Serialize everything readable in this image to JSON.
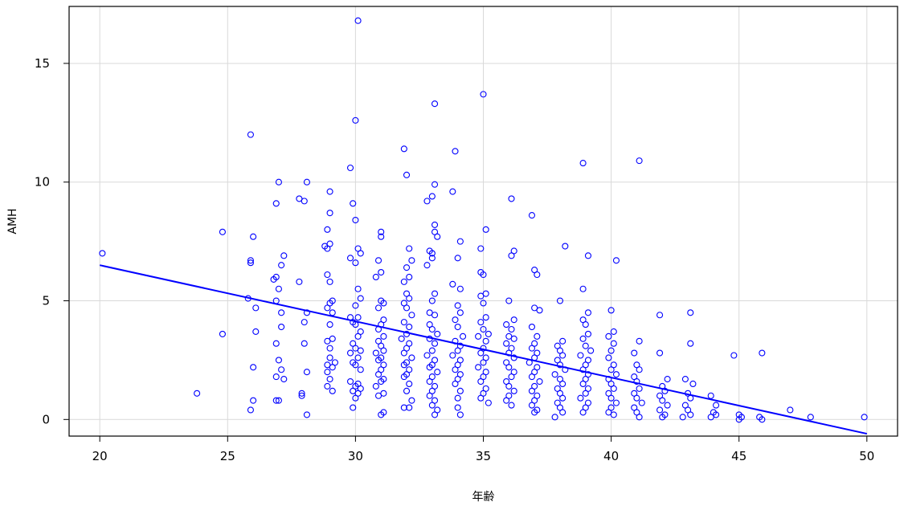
{
  "chart_data": {
    "type": "scatter",
    "xlabel": "年齢",
    "ylabel": "AMH",
    "xlim": [
      18.8,
      51.2
    ],
    "ylim": [
      -0.7,
      17.4
    ],
    "xticks": [
      20,
      25,
      30,
      35,
      40,
      45,
      50
    ],
    "yticks": [
      0,
      5,
      10,
      15
    ],
    "grid": true,
    "colors": {
      "points": "#0000ff",
      "fit_line": "#0000ff",
      "grid": "#d9d9d9",
      "axes": "#000000"
    },
    "fit_line": {
      "x": [
        20,
        50
      ],
      "y": [
        6.5,
        -0.6
      ]
    },
    "points": [
      [
        20.1,
        7.0
      ],
      [
        23.8,
        1.1
      ],
      [
        24.8,
        7.9
      ],
      [
        24.8,
        3.6
      ],
      [
        25.9,
        12.0
      ],
      [
        25.9,
        6.7
      ],
      [
        25.9,
        6.6
      ],
      [
        25.8,
        5.1
      ],
      [
        26.0,
        7.7
      ],
      [
        26.1,
        4.7
      ],
      [
        26.1,
        3.7
      ],
      [
        26.0,
        2.2
      ],
      [
        26.0,
        0.8
      ],
      [
        25.9,
        0.4
      ],
      [
        27.0,
        10.0
      ],
      [
        26.9,
        9.1
      ],
      [
        27.2,
        6.9
      ],
      [
        27.1,
        6.5
      ],
      [
        26.9,
        6.0
      ],
      [
        27.0,
        5.5
      ],
      [
        26.8,
        5.9
      ],
      [
        26.9,
        5.0
      ],
      [
        27.1,
        4.5
      ],
      [
        27.1,
        3.9
      ],
      [
        26.9,
        3.2
      ],
      [
        27.0,
        2.5
      ],
      [
        27.1,
        2.1
      ],
      [
        26.9,
        1.8
      ],
      [
        27.2,
        1.7
      ],
      [
        26.9,
        0.8
      ],
      [
        27.0,
        0.8
      ],
      [
        27.8,
        9.3
      ],
      [
        28.0,
        9.2
      ],
      [
        28.1,
        10.0
      ],
      [
        27.8,
        5.8
      ],
      [
        28.1,
        4.5
      ],
      [
        28.0,
        4.1
      ],
      [
        28.0,
        3.2
      ],
      [
        28.1,
        2.0
      ],
      [
        27.9,
        1.1
      ],
      [
        27.9,
        1.0
      ],
      [
        28.1,
        0.2
      ],
      [
        29.0,
        9.6
      ],
      [
        29.0,
        8.7
      ],
      [
        28.9,
        8.0
      ],
      [
        28.8,
        7.3
      ],
      [
        29.0,
        7.4
      ],
      [
        28.9,
        7.2
      ],
      [
        28.9,
        6.1
      ],
      [
        29.0,
        5.8
      ],
      [
        29.1,
        5.0
      ],
      [
        29.0,
        4.9
      ],
      [
        28.9,
        4.7
      ],
      [
        29.1,
        4.5
      ],
      [
        29.0,
        4.0
      ],
      [
        29.1,
        3.4
      ],
      [
        28.9,
        3.3
      ],
      [
        29.0,
        3.0
      ],
      [
        29.0,
        2.6
      ],
      [
        29.2,
        2.4
      ],
      [
        28.9,
        2.3
      ],
      [
        29.1,
        2.2
      ],
      [
        28.9,
        2.0
      ],
      [
        29.0,
        1.7
      ],
      [
        28.9,
        1.4
      ],
      [
        29.1,
        1.2
      ],
      [
        30.1,
        16.8
      ],
      [
        30.0,
        12.6
      ],
      [
        29.8,
        10.6
      ],
      [
        29.9,
        9.1
      ],
      [
        30.0,
        8.4
      ],
      [
        30.1,
        7.2
      ],
      [
        30.2,
        7.0
      ],
      [
        29.8,
        6.8
      ],
      [
        30.0,
        6.6
      ],
      [
        30.1,
        5.5
      ],
      [
        30.2,
        5.1
      ],
      [
        30.0,
        4.8
      ],
      [
        29.8,
        4.3
      ],
      [
        30.1,
        4.3
      ],
      [
        29.9,
        4.1
      ],
      [
        30.0,
        4.0
      ],
      [
        30.2,
        3.7
      ],
      [
        30.1,
        3.5
      ],
      [
        29.9,
        3.2
      ],
      [
        30.0,
        3.0
      ],
      [
        30.2,
        2.9
      ],
      [
        29.8,
        2.8
      ],
      [
        30.1,
        2.6
      ],
      [
        29.9,
        2.4
      ],
      [
        30.0,
        2.3
      ],
      [
        30.2,
        2.1
      ],
      [
        29.8,
        1.6
      ],
      [
        30.1,
        1.5
      ],
      [
        30.0,
        1.4
      ],
      [
        30.2,
        1.3
      ],
      [
        29.9,
        1.2
      ],
      [
        30.1,
        1.1
      ],
      [
        30.0,
        0.9
      ],
      [
        29.9,
        0.5
      ],
      [
        31.0,
        7.9
      ],
      [
        31.0,
        7.7
      ],
      [
        30.9,
        6.7
      ],
      [
        30.8,
        6.0
      ],
      [
        31.0,
        6.2
      ],
      [
        31.0,
        5.0
      ],
      [
        31.1,
        4.9
      ],
      [
        30.9,
        4.7
      ],
      [
        31.1,
        4.2
      ],
      [
        31.0,
        4.0
      ],
      [
        30.9,
        3.8
      ],
      [
        31.1,
        3.5
      ],
      [
        30.9,
        3.3
      ],
      [
        31.0,
        3.1
      ],
      [
        31.1,
        2.9
      ],
      [
        30.8,
        2.8
      ],
      [
        31.0,
        2.6
      ],
      [
        30.9,
        2.5
      ],
      [
        31.1,
        2.3
      ],
      [
        31.0,
        2.1
      ],
      [
        30.9,
        1.9
      ],
      [
        31.1,
        1.7
      ],
      [
        31.0,
        1.6
      ],
      [
        30.8,
        1.4
      ],
      [
        31.1,
        1.1
      ],
      [
        30.9,
        1.0
      ],
      [
        31.0,
        0.2
      ],
      [
        31.1,
        0.3
      ],
      [
        31.9,
        11.4
      ],
      [
        32.0,
        10.3
      ],
      [
        32.1,
        7.2
      ],
      [
        32.2,
        6.7
      ],
      [
        32.0,
        6.4
      ],
      [
        32.1,
        6.0
      ],
      [
        31.9,
        5.8
      ],
      [
        32.0,
        5.3
      ],
      [
        32.1,
        5.1
      ],
      [
        31.9,
        4.9
      ],
      [
        32.0,
        4.7
      ],
      [
        32.2,
        4.4
      ],
      [
        31.9,
        4.1
      ],
      [
        32.1,
        3.9
      ],
      [
        32.0,
        3.6
      ],
      [
        31.8,
        3.4
      ],
      [
        32.1,
        3.2
      ],
      [
        32.0,
        3.0
      ],
      [
        31.9,
        2.8
      ],
      [
        32.2,
        2.6
      ],
      [
        32.0,
        2.4
      ],
      [
        31.9,
        2.3
      ],
      [
        32.1,
        2.1
      ],
      [
        32.0,
        1.9
      ],
      [
        31.9,
        1.8
      ],
      [
        32.1,
        1.5
      ],
      [
        32.0,
        1.2
      ],
      [
        32.2,
        0.8
      ],
      [
        31.9,
        0.5
      ],
      [
        32.1,
        0.5
      ],
      [
        33.1,
        13.3
      ],
      [
        33.1,
        9.9
      ],
      [
        33.0,
        9.4
      ],
      [
        32.8,
        9.2
      ],
      [
        33.1,
        8.2
      ],
      [
        33.1,
        7.9
      ],
      [
        33.2,
        7.7
      ],
      [
        32.9,
        7.1
      ],
      [
        33.0,
        7.0
      ],
      [
        33.0,
        6.8
      ],
      [
        32.8,
        6.5
      ],
      [
        33.1,
        5.3
      ],
      [
        33.0,
        5.0
      ],
      [
        32.9,
        4.5
      ],
      [
        33.1,
        4.4
      ],
      [
        32.9,
        4.0
      ],
      [
        33.0,
        3.8
      ],
      [
        33.2,
        3.6
      ],
      [
        32.9,
        3.4
      ],
      [
        33.1,
        3.2
      ],
      [
        33.0,
        2.9
      ],
      [
        32.8,
        2.7
      ],
      [
        33.1,
        2.5
      ],
      [
        33.0,
        2.3
      ],
      [
        32.9,
        2.2
      ],
      [
        33.2,
        2.0
      ],
      [
        33.0,
        1.8
      ],
      [
        32.9,
        1.6
      ],
      [
        33.1,
        1.4
      ],
      [
        33.0,
        1.2
      ],
      [
        32.9,
        1.0
      ],
      [
        33.1,
        0.8
      ],
      [
        33.0,
        0.6
      ],
      [
        33.2,
        0.4
      ],
      [
        33.1,
        0.2
      ],
      [
        33.9,
        11.3
      ],
      [
        33.8,
        9.6
      ],
      [
        34.1,
        7.5
      ],
      [
        34.0,
        6.8
      ],
      [
        33.8,
        5.7
      ],
      [
        34.1,
        5.5
      ],
      [
        34.0,
        4.8
      ],
      [
        34.1,
        4.5
      ],
      [
        33.9,
        4.2
      ],
      [
        34.0,
        3.9
      ],
      [
        34.2,
        3.5
      ],
      [
        33.9,
        3.3
      ],
      [
        34.1,
        3.1
      ],
      [
        34.0,
        2.9
      ],
      [
        33.8,
        2.7
      ],
      [
        34.1,
        2.5
      ],
      [
        34.0,
        2.3
      ],
      [
        33.9,
        2.1
      ],
      [
        34.1,
        1.9
      ],
      [
        34.0,
        1.7
      ],
      [
        33.9,
        1.5
      ],
      [
        34.1,
        1.2
      ],
      [
        34.0,
        0.9
      ],
      [
        34.0,
        0.5
      ],
      [
        34.1,
        0.2
      ],
      [
        35.0,
        13.7
      ],
      [
        35.1,
        8.0
      ],
      [
        34.9,
        7.2
      ],
      [
        34.9,
        6.2
      ],
      [
        35.0,
        6.1
      ],
      [
        35.1,
        5.3
      ],
      [
        34.9,
        5.2
      ],
      [
        35.0,
        4.9
      ],
      [
        35.1,
        4.3
      ],
      [
        34.9,
        4.1
      ],
      [
        35.0,
        3.8
      ],
      [
        35.2,
        3.6
      ],
      [
        34.8,
        3.5
      ],
      [
        35.1,
        3.3
      ],
      [
        35.0,
        3.0
      ],
      [
        34.9,
        2.8
      ],
      [
        35.1,
        2.6
      ],
      [
        35.0,
        2.4
      ],
      [
        34.8,
        2.2
      ],
      [
        35.1,
        2.0
      ],
      [
        35.0,
        1.8
      ],
      [
        34.9,
        1.6
      ],
      [
        35.1,
        1.3
      ],
      [
        35.0,
        1.1
      ],
      [
        34.9,
        0.9
      ],
      [
        35.2,
        0.7
      ],
      [
        36.1,
        9.3
      ],
      [
        36.2,
        7.1
      ],
      [
        36.1,
        6.9
      ],
      [
        36.0,
        5.0
      ],
      [
        36.2,
        4.2
      ],
      [
        35.9,
        4.0
      ],
      [
        36.1,
        3.8
      ],
      [
        36.0,
        3.5
      ],
      [
        36.2,
        3.4
      ],
      [
        35.9,
        3.2
      ],
      [
        36.1,
        3.0
      ],
      [
        36.0,
        2.8
      ],
      [
        36.2,
        2.6
      ],
      [
        35.9,
        2.4
      ],
      [
        36.0,
        2.2
      ],
      [
        36.2,
        2.0
      ],
      [
        36.1,
        1.8
      ],
      [
        35.9,
        1.6
      ],
      [
        36.0,
        1.4
      ],
      [
        36.2,
        1.2
      ],
      [
        36.0,
        1.0
      ],
      [
        35.9,
        0.8
      ],
      [
        36.1,
        0.6
      ],
      [
        36.9,
        8.6
      ],
      [
        37.0,
        6.3
      ],
      [
        37.1,
        6.1
      ],
      [
        37.0,
        4.7
      ],
      [
        37.2,
        4.6
      ],
      [
        36.9,
        3.9
      ],
      [
        37.1,
        3.5
      ],
      [
        37.0,
        3.2
      ],
      [
        36.9,
        3.0
      ],
      [
        37.1,
        2.8
      ],
      [
        37.0,
        2.6
      ],
      [
        36.8,
        2.4
      ],
      [
        37.1,
        2.2
      ],
      [
        37.0,
        2.0
      ],
      [
        36.9,
        1.8
      ],
      [
        37.2,
        1.6
      ],
      [
        37.0,
        1.4
      ],
      [
        36.9,
        1.2
      ],
      [
        37.1,
        1.0
      ],
      [
        37.0,
        0.8
      ],
      [
        36.9,
        0.6
      ],
      [
        37.1,
        0.4
      ],
      [
        37.0,
        0.3
      ],
      [
        38.2,
        7.3
      ],
      [
        38.0,
        5.0
      ],
      [
        38.1,
        3.3
      ],
      [
        37.9,
        3.1
      ],
      [
        38.0,
        2.9
      ],
      [
        38.1,
        2.7
      ],
      [
        37.9,
        2.5
      ],
      [
        38.0,
        2.3
      ],
      [
        38.2,
        2.1
      ],
      [
        37.8,
        1.9
      ],
      [
        38.0,
        1.7
      ],
      [
        38.1,
        1.5
      ],
      [
        37.9,
        1.3
      ],
      [
        38.0,
        1.1
      ],
      [
        38.1,
        0.9
      ],
      [
        37.9,
        0.7
      ],
      [
        38.0,
        0.5
      ],
      [
        38.1,
        0.3
      ],
      [
        37.8,
        0.1
      ],
      [
        38.9,
        10.8
      ],
      [
        38.9,
        5.5
      ],
      [
        39.1,
        6.9
      ],
      [
        39.1,
        4.5
      ],
      [
        38.9,
        4.2
      ],
      [
        39.0,
        4.0
      ],
      [
        39.1,
        3.6
      ],
      [
        38.9,
        3.4
      ],
      [
        39.0,
        3.1
      ],
      [
        39.2,
        2.9
      ],
      [
        38.8,
        2.7
      ],
      [
        39.1,
        2.5
      ],
      [
        39.0,
        2.3
      ],
      [
        38.9,
        2.1
      ],
      [
        39.1,
        1.9
      ],
      [
        39.0,
        1.7
      ],
      [
        38.9,
        1.5
      ],
      [
        39.1,
        1.3
      ],
      [
        39.0,
        1.1
      ],
      [
        38.8,
        0.9
      ],
      [
        39.1,
        0.7
      ],
      [
        39.0,
        0.5
      ],
      [
        38.9,
        0.3
      ],
      [
        40.2,
        6.7
      ],
      [
        40.0,
        4.6
      ],
      [
        40.1,
        3.7
      ],
      [
        39.9,
        3.5
      ],
      [
        40.1,
        3.2
      ],
      [
        40.0,
        2.9
      ],
      [
        39.9,
        2.6
      ],
      [
        40.1,
        2.3
      ],
      [
        40.0,
        2.1
      ],
      [
        40.2,
        1.9
      ],
      [
        39.9,
        1.7
      ],
      [
        40.0,
        1.5
      ],
      [
        40.1,
        1.3
      ],
      [
        39.9,
        1.1
      ],
      [
        40.0,
        0.9
      ],
      [
        40.2,
        0.7
      ],
      [
        40.0,
        0.5
      ],
      [
        39.9,
        0.3
      ],
      [
        40.1,
        0.2
      ],
      [
        41.1,
        10.9
      ],
      [
        41.1,
        3.3
      ],
      [
        40.9,
        2.8
      ],
      [
        41.0,
        2.3
      ],
      [
        41.1,
        2.1
      ],
      [
        40.9,
        1.8
      ],
      [
        41.0,
        1.6
      ],
      [
        41.1,
        1.3
      ],
      [
        40.9,
        1.1
      ],
      [
        41.0,
        0.9
      ],
      [
        41.2,
        0.7
      ],
      [
        40.9,
        0.5
      ],
      [
        41.0,
        0.3
      ],
      [
        41.1,
        0.1
      ],
      [
        41.9,
        4.4
      ],
      [
        41.9,
        2.8
      ],
      [
        42.2,
        1.7
      ],
      [
        42.0,
        1.4
      ],
      [
        42.1,
        1.2
      ],
      [
        41.9,
        1.0
      ],
      [
        42.0,
        0.8
      ],
      [
        42.2,
        0.6
      ],
      [
        41.9,
        0.4
      ],
      [
        42.1,
        0.2
      ],
      [
        42.0,
        0.1
      ],
      [
        43.1,
        4.5
      ],
      [
        43.1,
        3.2
      ],
      [
        42.9,
        1.7
      ],
      [
        43.2,
        1.5
      ],
      [
        43.0,
        1.1
      ],
      [
        43.1,
        0.9
      ],
      [
        42.9,
        0.6
      ],
      [
        43.0,
        0.4
      ],
      [
        43.1,
        0.2
      ],
      [
        42.8,
        0.1
      ],
      [
        43.9,
        1.0
      ],
      [
        44.1,
        0.6
      ],
      [
        44.0,
        0.3
      ],
      [
        43.9,
        0.1
      ],
      [
        44.1,
        0.2
      ],
      [
        44.8,
        2.7
      ],
      [
        45.0,
        0.2
      ],
      [
        45.1,
        0.1
      ],
      [
        45.0,
        0.0
      ],
      [
        45.9,
        2.8
      ],
      [
        45.8,
        0.1
      ],
      [
        45.9,
        0.0
      ],
      [
        47.0,
        0.4
      ],
      [
        47.8,
        0.1
      ],
      [
        49.9,
        0.1
      ]
    ]
  }
}
